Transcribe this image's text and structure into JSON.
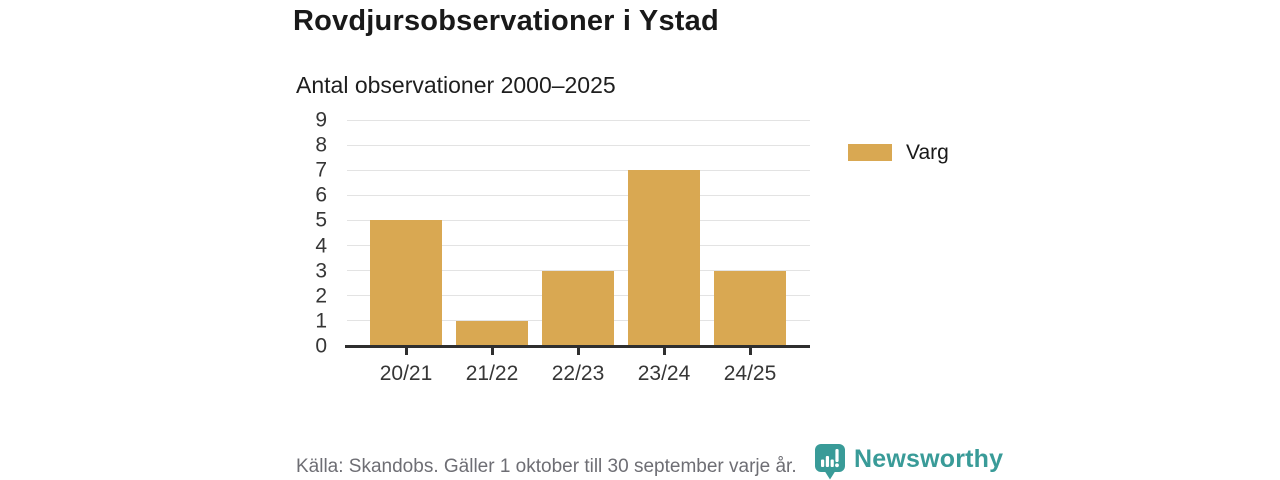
{
  "title": "Rovdjursobservationer i Ystad",
  "subtitle": "Antal observationer 2000–2025",
  "legend": {
    "items": [
      {
        "label": "Varg",
        "color": "#d9a852"
      }
    ]
  },
  "footer": {
    "source_note": "Källa: Skandobs. Gäller 1 oktober till 30 september varje år.",
    "brand_name": "Newsworthy"
  },
  "colors": {
    "bar": "#d9a852",
    "brand_teal": "#399b98",
    "gridline": "#e3e3e3",
    "axis": "#2f2f2f",
    "title_text": "#191919",
    "axis_text": "#363636",
    "muted_text": "#6e6e74"
  },
  "chart_data": {
    "type": "bar",
    "title": "Rovdjursobservationer i Ystad",
    "subtitle": "Antal observationer 2000–2025",
    "categories": [
      "20/21",
      "21/22",
      "22/23",
      "23/24",
      "24/25"
    ],
    "series": [
      {
        "name": "Varg",
        "values": [
          5,
          1,
          3,
          7,
          3
        ]
      }
    ],
    "xlabel": "",
    "ylabel": "",
    "ylim": [
      0,
      9
    ],
    "yticks": [
      0,
      1,
      2,
      3,
      4,
      5,
      6,
      7,
      8,
      9
    ],
    "grid": true,
    "legend_position": "right",
    "bar_color": "#d9a852"
  }
}
